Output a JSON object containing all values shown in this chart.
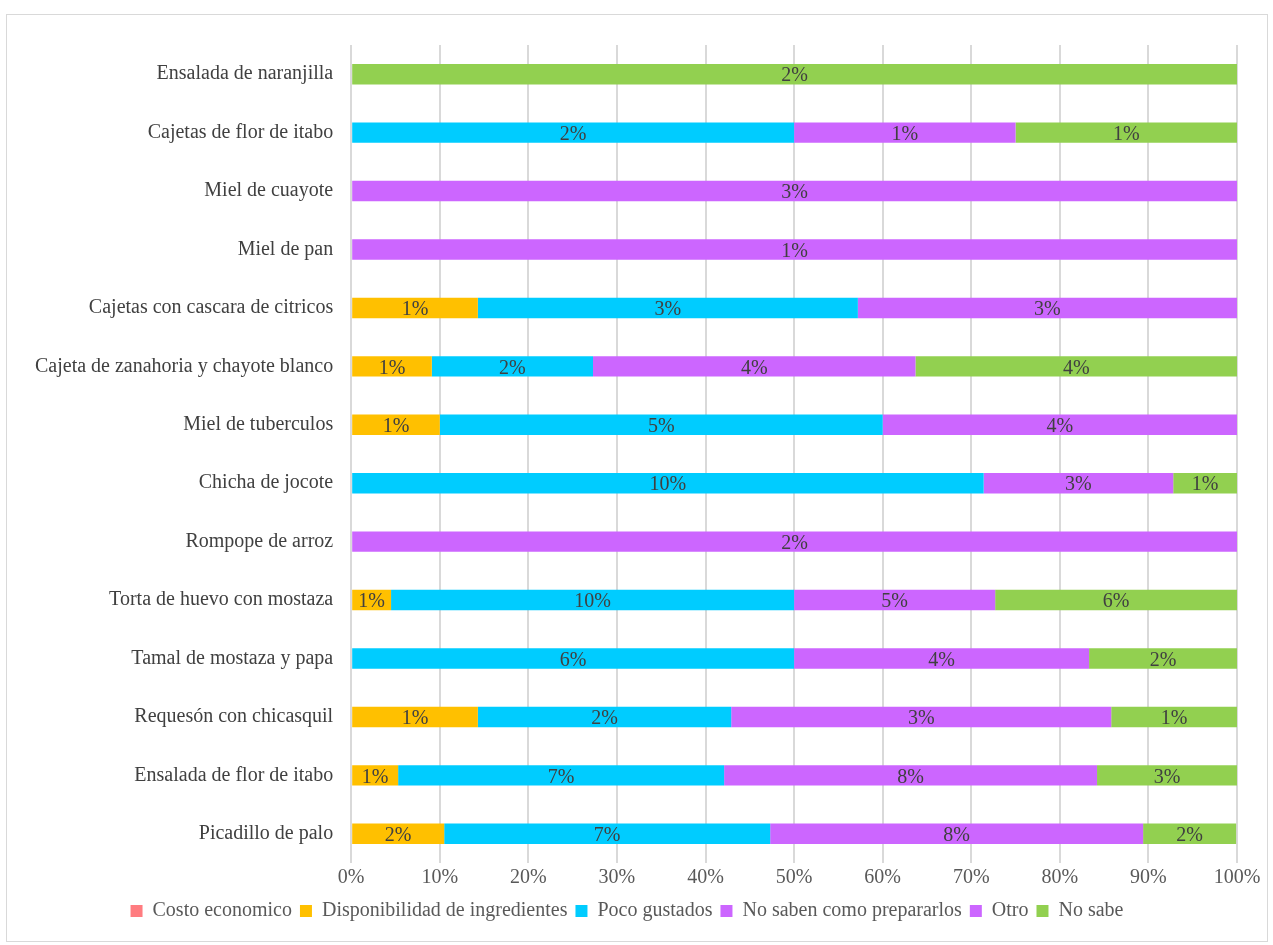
{
  "chart_data": {
    "type": "bar",
    "orientation": "horizontal",
    "stacked": true,
    "categories": [
      "Ensalada de naranjilla",
      "Cajetas de flor de itabo",
      "Miel de cuayote",
      "Miel de pan",
      "Cajetas con cascara de citricos",
      "Cajeta de zanahoria y chayote blanco",
      "Miel de tuberculos",
      "Chicha de jocote",
      "Rompope de arroz",
      "Torta de huevo con mostaza",
      "Tamal de mostaza y papa",
      "Requesón con chicasquil",
      "Ensalada de flor de itabo",
      "Picadillo de palo"
    ],
    "series": [
      {
        "name": "Costo economico",
        "color": "#ff7c80",
        "values": [
          null,
          null,
          null,
          null,
          null,
          null,
          null,
          null,
          null,
          null,
          null,
          null,
          null,
          null
        ]
      },
      {
        "name": "Disponibilidad de ingredientes",
        "color": "#ffc000",
        "values": [
          null,
          null,
          null,
          null,
          14.3,
          9.1,
          10,
          null,
          null,
          4.5,
          null,
          14.3,
          5.3,
          10.5
        ]
      },
      {
        "name": "Poco gustados",
        "color": "#00ccff",
        "values": [
          null,
          50,
          null,
          null,
          42.9,
          18.2,
          50,
          71.4,
          null,
          45.5,
          50,
          28.6,
          36.8,
          36.8
        ]
      },
      {
        "name": "No saben como prepararlos",
        "color": "#cc66ff",
        "values": [
          null,
          25,
          100,
          100,
          42.8,
          36.4,
          40,
          21.4,
          100,
          22.7,
          33.3,
          42.9,
          42.1,
          42.1
        ]
      },
      {
        "name": "Otro",
        "color": "#cc66ff",
        "values": [
          null,
          null,
          null,
          null,
          null,
          null,
          null,
          null,
          null,
          null,
          null,
          null,
          null,
          null
        ]
      },
      {
        "name": "No sabe",
        "color": "#92d050",
        "values": [
          100,
          25,
          null,
          null,
          null,
          36.3,
          null,
          7.2,
          null,
          27.3,
          16.7,
          14.2,
          15.8,
          10.5
        ]
      }
    ],
    "annotations": [
      "2%",
      "2%",
      "1%",
      "1%",
      "3%",
      "1%",
      "1%",
      "3%",
      "3%",
      "1%",
      "2%",
      "4%",
      "4%",
      "1%",
      "5%",
      "4%",
      "10%",
      "3%",
      "1%",
      "2%",
      "1%",
      "10%",
      "5%",
      "6%",
      "6%",
      "4%",
      "2%",
      "1%",
      "2%",
      "3%",
      "1%",
      "1%",
      "7%",
      "8%",
      "3%",
      "2%",
      "7%",
      "8%",
      "2%"
    ],
    "xlim": [
      0,
      100
    ],
    "xticks": [
      {
        "value": 0,
        "label": "0%"
      },
      {
        "value": 10,
        "label": "10%"
      },
      {
        "value": 20,
        "label": "20%"
      },
      {
        "value": 30,
        "label": "30%"
      },
      {
        "value": 40,
        "label": "40%"
      },
      {
        "value": 50,
        "label": "50%"
      },
      {
        "value": 60,
        "label": "60%"
      },
      {
        "value": 70,
        "label": "70%"
      },
      {
        "value": 80,
        "label": "80%"
      },
      {
        "value": 90,
        "label": "90%"
      },
      {
        "value": 100,
        "label": "100%"
      }
    ],
    "grid": "x",
    "legend": "bottom"
  }
}
